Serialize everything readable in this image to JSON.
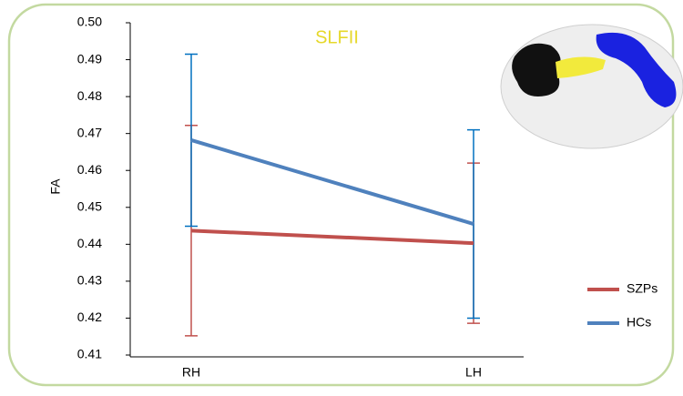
{
  "chart_data": {
    "type": "line",
    "title": "SLFII",
    "y_label": "FA",
    "categories": [
      "RH",
      "LH"
    ],
    "series": [
      {
        "name": "SZPs",
        "color": "#c0504d",
        "error_color": "#c0504d",
        "values": [
          0.4437,
          0.4403
        ],
        "errors": [
          0.0285,
          0.0217
        ]
      },
      {
        "name": "HCs",
        "color": "#4f81bd",
        "error_color": "#0070c0",
        "values": [
          0.4682,
          0.4455
        ],
        "errors": [
          0.0233,
          0.0255
        ]
      }
    ],
    "ylim": [
      0.41,
      0.5
    ],
    "yticks": [
      0.41,
      0.42,
      0.43,
      0.44,
      0.45,
      0.46,
      0.47,
      0.48,
      0.49,
      {
        "value": 0.5,
        "label": "0.50"
      }
    ],
    "legend": "right"
  }
}
